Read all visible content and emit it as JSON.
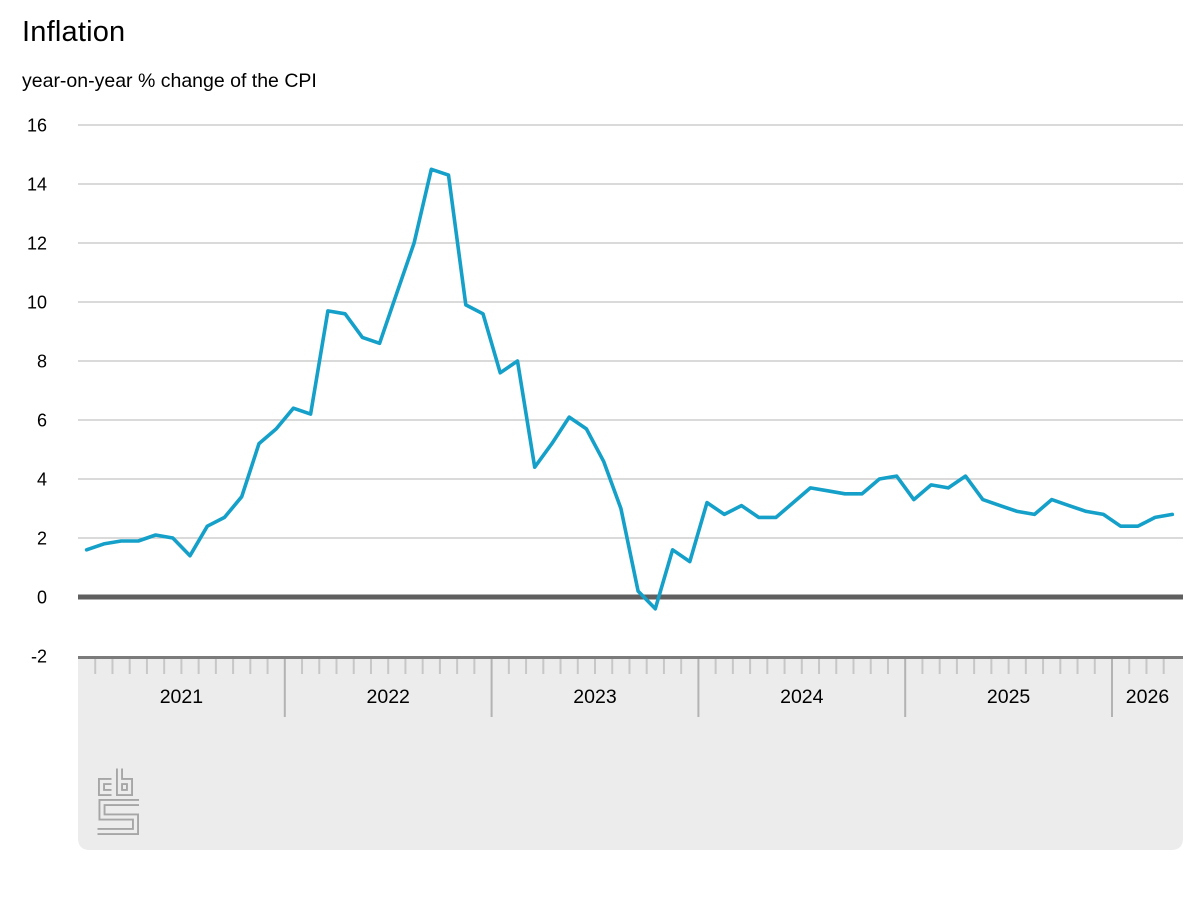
{
  "header": {
    "title": "Inflation",
    "subtitle": "year-on-year % change of the CPI"
  },
  "logo": {
    "name": "cbs-logo",
    "alt": "CBS"
  },
  "chart_data": {
    "type": "line",
    "title": "Inflation",
    "subtitle": "year-on-year % change of the CPI",
    "frequency": "monthly",
    "x_start": "2021-01",
    "x_end": "2026-04",
    "years": [
      "2021",
      "2022",
      "2023",
      "2024",
      "2025",
      "2026"
    ],
    "y_ticks": [
      16,
      14,
      12,
      10,
      8,
      6,
      4,
      2,
      0,
      -2
    ],
    "ylim": [
      -2,
      16
    ],
    "grid": "horizontal",
    "zero_line": true,
    "legend": "none",
    "series": [
      {
        "name": "CPI year-on-year % change",
        "color": "#14a0c8",
        "values": [
          1.6,
          1.8,
          1.9,
          1.9,
          2.1,
          2.0,
          1.4,
          2.4,
          2.7,
          3.4,
          5.2,
          5.7,
          6.4,
          6.2,
          9.7,
          9.6,
          8.8,
          8.6,
          10.3,
          12.0,
          14.5,
          14.3,
          9.9,
          9.6,
          7.6,
          8.0,
          4.4,
          5.2,
          6.1,
          5.7,
          4.6,
          3.0,
          0.2,
          -0.4,
          1.6,
          1.2,
          3.2,
          2.8,
          3.1,
          2.7,
          2.7,
          3.2,
          3.7,
          3.6,
          3.5,
          3.5,
          4.0,
          4.1,
          3.3,
          3.8,
          3.7,
          4.1,
          3.3,
          3.1,
          2.9,
          2.8,
          3.3,
          3.1,
          2.9,
          2.8,
          2.4,
          2.4,
          2.7,
          2.8
        ]
      }
    ],
    "style": {
      "line_color": "#14a0c8",
      "grid_color": "#c4c4c4",
      "zero_line_color": "#5f5f5f",
      "band_color": "#ececec",
      "band_border_color": "#7b7b7b",
      "month_tick_color": "#c7c7c7",
      "year_divider_color": "#b3b3b3",
      "text_color": "#000000",
      "logo_color": "#a6a6a6"
    }
  }
}
